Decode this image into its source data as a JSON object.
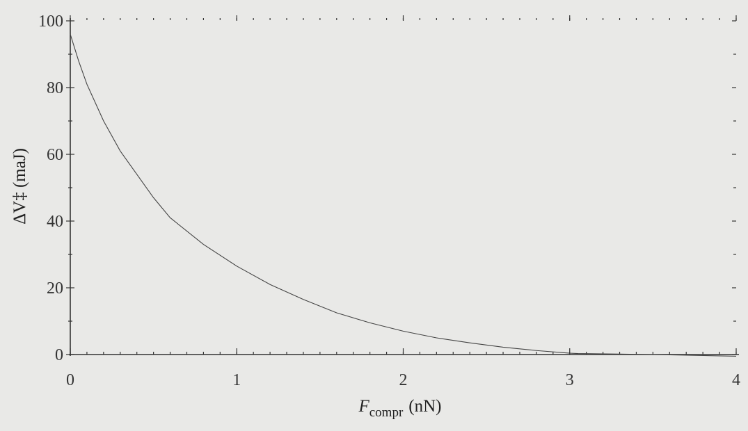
{
  "chart_data": {
    "type": "line",
    "title": "",
    "xlabel": {
      "main": "F",
      "sub": "compr",
      "unit": "(nN)"
    },
    "ylabel": "ΔV‡ (maJ)",
    "xlim": [
      0,
      4
    ],
    "ylim": [
      0,
      100
    ],
    "x_ticks": [
      0,
      1,
      2,
      3,
      4
    ],
    "y_ticks": [
      0,
      20,
      40,
      60,
      80,
      100
    ],
    "x_tick_labels": [
      "0",
      "1",
      "2",
      "3",
      "4"
    ],
    "y_tick_labels": [
      "0",
      "20",
      "40",
      "60",
      "80",
      "100"
    ],
    "grid": false,
    "series": [
      {
        "color": "#444444",
        "x": [
          0.0,
          0.05,
          0.1,
          0.2,
          0.3,
          0.4,
          0.5,
          0.6,
          0.8,
          1.0,
          1.2,
          1.4,
          1.6,
          1.8,
          2.0,
          2.2,
          2.4,
          2.6,
          2.8,
          3.0,
          3.05,
          3.5,
          4.0
        ],
        "y": [
          96,
          88,
          81,
          70,
          61,
          54,
          47,
          41,
          33,
          26.5,
          21,
          16.5,
          12.5,
          9.5,
          7,
          5,
          3.5,
          2.2,
          1.2,
          0.4,
          0.3,
          0.0,
          -0.5
        ]
      }
    ]
  }
}
